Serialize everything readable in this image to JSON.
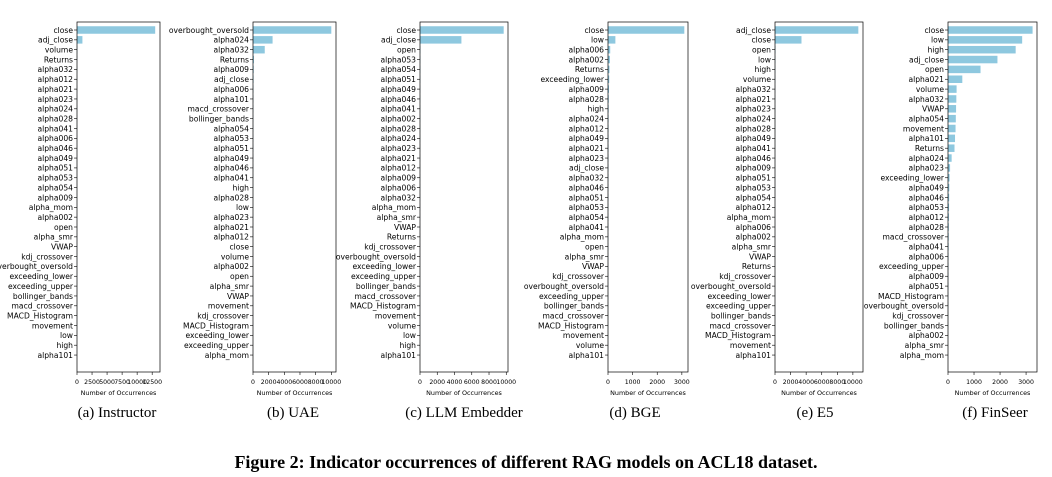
{
  "figure_caption": "Figure 2: Indicator occurrences of different RAG models on ACL18 dataset.",
  "bar_color": "#8ec8df",
  "chart_data": [
    {
      "type": "bar",
      "orientation": "horizontal",
      "caption": "(a) Instructor",
      "xlabel": "Number of Occurrences",
      "xlim": [
        0,
        13800
      ],
      "xticks": [
        0,
        2500,
        5000,
        7500,
        10000,
        12500
      ],
      "xtick_labels": [
        "0",
        "2500",
        "5000",
        "7500",
        "10000",
        "12500"
      ],
      "categories": [
        "close",
        "adj_close",
        "volume",
        "Returns",
        "alpha032",
        "alpha012",
        "alpha021",
        "alpha023",
        "alpha024",
        "alpha028",
        "alpha041",
        "alpha006",
        "alpha046",
        "alpha049",
        "alpha051",
        "alpha053",
        "alpha054",
        "alpha009",
        "alpha_mom",
        "alpha002",
        "open",
        "alpha_smr",
        "VWAP",
        "kdj_crossover",
        "overbought_oversold",
        "exceeding_lower",
        "exceeding_upper",
        "bollinger_bands",
        "macd_crossover",
        "MACD_Histogram",
        "movement",
        "low",
        "high",
        "alpha101"
      ],
      "values": [
        13000,
        900,
        40,
        30,
        25,
        20,
        18,
        16,
        15,
        14,
        13,
        12,
        11,
        10,
        10,
        9,
        9,
        8,
        8,
        7,
        7,
        6,
        6,
        5,
        5,
        5,
        4,
        4,
        4,
        3,
        3,
        3,
        2,
        2
      ]
    },
    {
      "type": "bar",
      "orientation": "horizontal",
      "caption": "(b) UAE",
      "xlabel": "Number of Occurrences",
      "xlim": [
        0,
        10600
      ],
      "xticks": [
        0,
        2000,
        4000,
        6000,
        8000,
        10000
      ],
      "xtick_labels": [
        "0",
        "2000",
        "4000",
        "6000",
        "8000",
        "10000"
      ],
      "categories": [
        "overbought_oversold",
        "alpha024",
        "alpha032",
        "Returns",
        "alpha009",
        "adj_close",
        "alpha006",
        "alpha101",
        "macd_crossover",
        "bollinger_bands",
        "alpha054",
        "alpha053",
        "alpha051",
        "alpha049",
        "alpha046",
        "alpha041",
        "high",
        "alpha028",
        "low",
        "alpha023",
        "alpha021",
        "alpha012",
        "close",
        "volume",
        "alpha002",
        "open",
        "alpha_smr",
        "VWAP",
        "movement",
        "kdj_crossover",
        "MACD_Histogram",
        "exceeding_lower",
        "exceeding_upper",
        "alpha_mom"
      ],
      "values": [
        10000,
        2500,
        1500,
        120,
        90,
        70,
        50,
        40,
        35,
        30,
        28,
        26,
        24,
        22,
        20,
        18,
        16,
        15,
        14,
        12,
        11,
        10,
        9,
        8,
        7,
        6,
        6,
        5,
        5,
        4,
        4,
        3,
        3,
        2
      ]
    },
    {
      "type": "bar",
      "orientation": "horizontal",
      "caption": "(c) LLM Embedder",
      "xlabel": "Number of Occurrences",
      "xlim": [
        0,
        10200
      ],
      "xticks": [
        0,
        2000,
        4000,
        6000,
        8000,
        10000
      ],
      "xtick_labels": [
        "0",
        "2000",
        "4000",
        "6000",
        "8000",
        "10000"
      ],
      "categories": [
        "close",
        "adj_close",
        "open",
        "alpha053",
        "alpha054",
        "alpha051",
        "alpha049",
        "alpha046",
        "alpha041",
        "alpha002",
        "alpha028",
        "alpha024",
        "alpha023",
        "alpha021",
        "alpha012",
        "alpha009",
        "alpha006",
        "alpha032",
        "alpha_mom",
        "alpha_smr",
        "VWAP",
        "Returns",
        "kdj_crossover",
        "overbought_oversold",
        "exceeding_lower",
        "exceeding_upper",
        "bollinger_bands",
        "macd_crossover",
        "MACD_Histogram",
        "movement",
        "volume",
        "low",
        "high",
        "alpha101"
      ],
      "values": [
        9700,
        4800,
        30,
        25,
        24,
        22,
        20,
        19,
        18,
        17,
        16,
        15,
        14,
        13,
        12,
        11,
        10,
        10,
        9,
        9,
        8,
        8,
        7,
        7,
        6,
        6,
        5,
        5,
        4,
        4,
        3,
        3,
        2,
        2
      ]
    },
    {
      "type": "bar",
      "orientation": "horizontal",
      "caption": "(d) BGE",
      "xlabel": "Number of Occurrences",
      "xlim": [
        0,
        3250
      ],
      "xticks": [
        0,
        1000,
        2000,
        3000
      ],
      "xtick_labels": [
        "0",
        "1000",
        "2000",
        "3000"
      ],
      "categories": [
        "close",
        "low",
        "alpha006",
        "alpha002",
        "Returns",
        "exceeding_lower",
        "alpha009",
        "alpha028",
        "high",
        "alpha024",
        "alpha012",
        "alpha049",
        "alpha021",
        "alpha023",
        "adj_close",
        "alpha032",
        "alpha046",
        "alpha051",
        "alpha053",
        "alpha054",
        "alpha041",
        "alpha_mom",
        "open",
        "alpha_smr",
        "VWAP",
        "kdj_crossover",
        "overbought_oversold",
        "exceeding_upper",
        "bollinger_bands",
        "macd_crossover",
        "MACD_Histogram",
        "movement",
        "volume",
        "alpha101"
      ],
      "values": [
        3100,
        300,
        90,
        80,
        60,
        50,
        40,
        30,
        25,
        22,
        20,
        18,
        16,
        15,
        14,
        13,
        12,
        11,
        10,
        10,
        9,
        9,
        8,
        8,
        7,
        7,
        6,
        6,
        5,
        5,
        4,
        4,
        3,
        2
      ]
    },
    {
      "type": "bar",
      "orientation": "horizontal",
      "caption": "(e) E5",
      "xlabel": "Number of Occurrences",
      "xlim": [
        0,
        11300
      ],
      "xticks": [
        0,
        2000,
        4000,
        6000,
        8000,
        10000
      ],
      "xtick_labels": [
        "0",
        "2000",
        "4000",
        "6000",
        "8000",
        "10000"
      ],
      "categories": [
        "adj_close",
        "close",
        "open",
        "low",
        "high",
        "volume",
        "alpha032",
        "alpha021",
        "alpha023",
        "alpha024",
        "alpha028",
        "alpha049",
        "alpha041",
        "alpha046",
        "alpha009",
        "alpha051",
        "alpha053",
        "alpha054",
        "alpha012",
        "alpha_mom",
        "alpha006",
        "alpha002",
        "alpha_smr",
        "VWAP",
        "Returns",
        "kdj_crossover",
        "overbought_oversold",
        "exceeding_lower",
        "exceeding_upper",
        "bollinger_bands",
        "macd_crossover",
        "MACD_Histogram",
        "movement",
        "alpha101"
      ],
      "values": [
        10700,
        3400,
        60,
        40,
        30,
        25,
        22,
        20,
        19,
        18,
        17,
        16,
        15,
        14,
        13,
        12,
        11,
        10,
        10,
        9,
        9,
        8,
        8,
        7,
        7,
        6,
        6,
        5,
        5,
        4,
        4,
        3,
        3,
        2
      ]
    },
    {
      "type": "bar",
      "orientation": "horizontal",
      "caption": "(f) FinSeer",
      "xlabel": "Number of Occurrences",
      "xlim": [
        0,
        3420
      ],
      "xticks": [
        0,
        1000,
        2000,
        3000
      ],
      "xtick_labels": [
        "0",
        "1000",
        "2000",
        "3000"
      ],
      "categories": [
        "close",
        "low",
        "high",
        "adj_close",
        "open",
        "alpha021",
        "volume",
        "alpha032",
        "VWAP",
        "alpha054",
        "movement",
        "alpha101",
        "Returns",
        "alpha024",
        "alpha023",
        "exceeding_lower",
        "alpha049",
        "alpha046",
        "alpha053",
        "alpha012",
        "alpha028",
        "macd_crossover",
        "alpha041",
        "alpha006",
        "exceeding_upper",
        "alpha009",
        "alpha051",
        "MACD_Histogram",
        "overbought_oversold",
        "kdj_crossover",
        "bollinger_bands",
        "alpha002",
        "alpha_smr",
        "alpha_mom"
      ],
      "values": [
        3250,
        2850,
        2600,
        1900,
        1250,
        550,
        330,
        320,
        310,
        300,
        290,
        270,
        250,
        140,
        80,
        60,
        50,
        45,
        40,
        35,
        30,
        26,
        22,
        18,
        15,
        12,
        10,
        8,
        6,
        5,
        4,
        3,
        2,
        1
      ]
    }
  ]
}
